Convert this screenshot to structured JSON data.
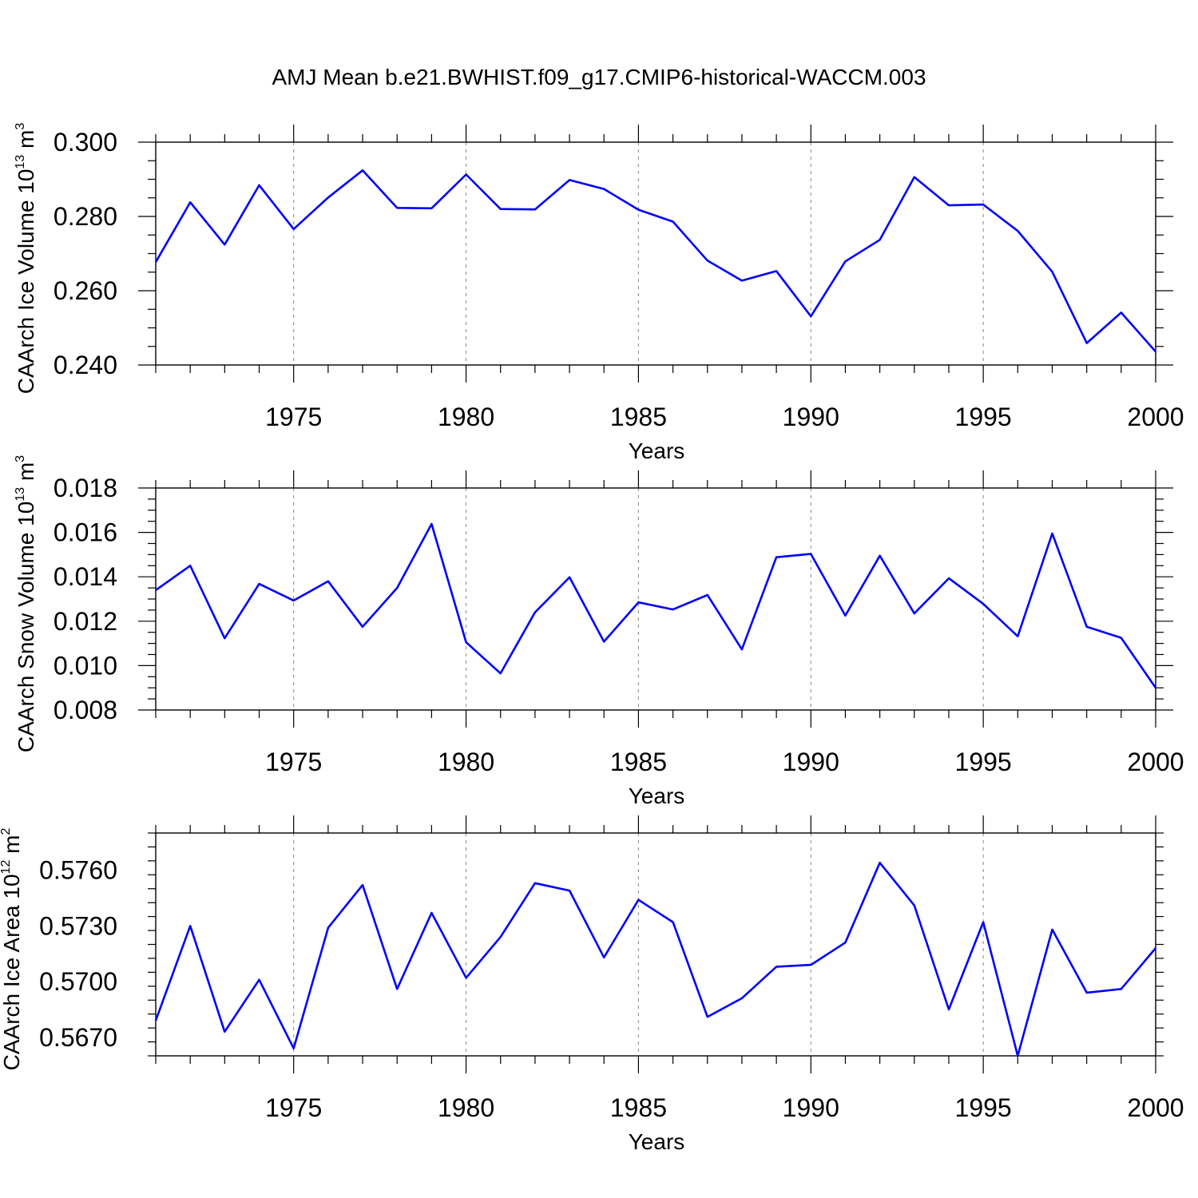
{
  "title": "AMJ Mean b.e21.BWHIST.f09_g17.CMIP6-historical-WACCM.003",
  "chart_data": [
    {
      "type": "line",
      "ylabel": {
        "main": "CAArch Ice Volume 10",
        "exp": "13",
        "unit": " m",
        "unit_exp": "3"
      },
      "xlabel": "Years",
      "xlim": [
        1971,
        2000
      ],
      "ylim": [
        0.24,
        0.3
      ],
      "yticks": [
        0.24,
        0.26,
        0.28,
        0.3
      ],
      "ytick_labels": [
        "0.240",
        "0.260",
        "0.280",
        "0.300"
      ],
      "xticks": [
        1975,
        1980,
        1985,
        1990,
        1995,
        2000
      ],
      "xtick_labels": [
        "1975",
        "1980",
        "1985",
        "1990",
        "1995",
        "2000"
      ],
      "line_color": "#0000ff",
      "series": [
        {
          "name": "CAArch Ice Volume",
          "x": [
            1971,
            1972,
            1973,
            1974,
            1975,
            1976,
            1977,
            1978,
            1979,
            1980,
            1981,
            1982,
            1983,
            1984,
            1985,
            1986,
            1987,
            1988,
            1989,
            1990,
            1991,
            1992,
            1993,
            1994,
            1995,
            1996,
            1997,
            1998,
            1999,
            2000
          ],
          "y": [
            0.2677,
            0.2838,
            0.2724,
            0.2884,
            0.2766,
            0.2851,
            0.2924,
            0.2823,
            0.2822,
            0.2913,
            0.282,
            0.2819,
            0.2898,
            0.2874,
            0.2818,
            0.2786,
            0.2681,
            0.2627,
            0.2653,
            0.2531,
            0.2679,
            0.2737,
            0.2906,
            0.283,
            0.2832,
            0.2761,
            0.2651,
            0.2459,
            0.2541,
            0.2436
          ]
        }
      ]
    },
    {
      "type": "line",
      "ylabel": {
        "main": "CAArch Snow Volume 10",
        "exp": "13",
        "unit": " m",
        "unit_exp": "3"
      },
      "xlabel": "Years",
      "xlim": [
        1971,
        2000
      ],
      "ylim": [
        0.008,
        0.018
      ],
      "yticks": [
        0.008,
        0.01,
        0.012,
        0.014,
        0.016,
        0.018
      ],
      "ytick_labels": [
        "0.008",
        "0.010",
        "0.012",
        "0.014",
        "0.016",
        "0.018"
      ],
      "xticks": [
        1975,
        1980,
        1985,
        1990,
        1995,
        2000
      ],
      "xtick_labels": [
        "1975",
        "1980",
        "1985",
        "1990",
        "1995",
        "2000"
      ],
      "line_color": "#0000ff",
      "series": [
        {
          "name": "CAArch Snow Volume",
          "x": [
            1971,
            1972,
            1973,
            1974,
            1975,
            1976,
            1977,
            1978,
            1979,
            1980,
            1981,
            1982,
            1983,
            1984,
            1985,
            1986,
            1987,
            1988,
            1989,
            1990,
            1991,
            1992,
            1993,
            1994,
            1995,
            1996,
            1997,
            1998,
            1999,
            2000
          ],
          "y": [
            0.0134,
            0.0145,
            0.01123,
            0.01368,
            0.01293,
            0.0138,
            0.01175,
            0.0135,
            0.01638,
            0.01105,
            0.00965,
            0.0124,
            0.01398,
            0.01108,
            0.01285,
            0.01253,
            0.01318,
            0.01073,
            0.01488,
            0.01503,
            0.01225,
            0.01495,
            0.01235,
            0.01393,
            0.01278,
            0.01132,
            0.01595,
            0.01175,
            0.01125,
            0.009
          ]
        }
      ]
    },
    {
      "type": "line",
      "ylabel": {
        "main": "CAArch Ice Area 10",
        "exp": "12",
        "unit": " m",
        "unit_exp": "2"
      },
      "xlabel": "Years",
      "xlim": [
        1971,
        2000
      ],
      "ylim": [
        0.566,
        0.578
      ],
      "yticks": [
        0.567,
        0.57,
        0.573,
        0.576
      ],
      "ytick_labels": [
        "0.5670",
        "0.5700",
        "0.5730",
        "0.5760"
      ],
      "xticks": [
        1975,
        1980,
        1985,
        1990,
        1995,
        2000
      ],
      "xtick_labels": [
        "1975",
        "1980",
        "1985",
        "1990",
        "1995",
        "2000"
      ],
      "line_color": "#0000ff",
      "series": [
        {
          "name": "CAArch Ice Area",
          "x": [
            1971,
            1972,
            1973,
            1974,
            1975,
            1976,
            1977,
            1978,
            1979,
            1980,
            1981,
            1982,
            1983,
            1984,
            1985,
            1986,
            1987,
            1988,
            1989,
            1990,
            1991,
            1992,
            1993,
            1994,
            1995,
            1996,
            1997,
            1998,
            1999,
            2000
          ],
          "y": [
            0.5679,
            0.573,
            0.5673,
            0.5701,
            0.5664,
            0.5729,
            0.5752,
            0.5696,
            0.5737,
            0.5702,
            0.5724,
            0.5753,
            0.5749,
            0.5713,
            0.5744,
            0.5732,
            0.5681,
            0.5691,
            0.5708,
            0.5709,
            0.5721,
            0.5764,
            0.5741,
            0.5685,
            0.5732,
            0.566,
            0.5728,
            0.5694,
            0.5696,
            0.5718
          ]
        }
      ]
    }
  ]
}
